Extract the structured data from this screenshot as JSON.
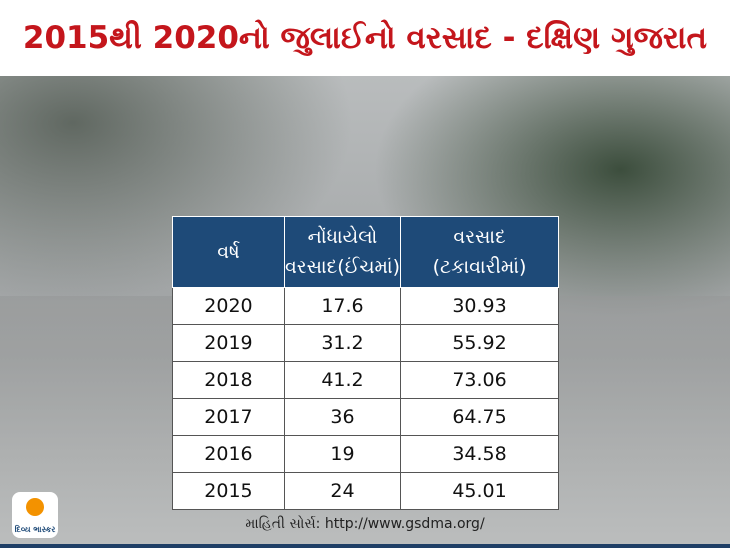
{
  "header": {
    "title": "2015થી 2020નો જુલાઈનો વરસાદ - દક્ષિણ ગુજરાત"
  },
  "table": {
    "columns": [
      "વર્ષ",
      "નોંધાયેલો\nવરસાદ(ઈંચમાં)",
      "વરસાદ\n(ટકાવારીમાં)"
    ],
    "rows": [
      [
        "2020",
        17.6,
        30.93
      ],
      [
        "2019",
        31.2,
        55.92
      ],
      [
        "2018",
        41.2,
        73.06
      ],
      [
        "2017",
        36,
        64.75
      ],
      [
        "2016",
        19,
        34.58
      ],
      [
        "2015",
        24,
        45.01
      ]
    ]
  },
  "source": "માહિતી સોર્સ: http://www.gsdma.org/",
  "logo": "દિવ્ય ભાસ્કર"
}
